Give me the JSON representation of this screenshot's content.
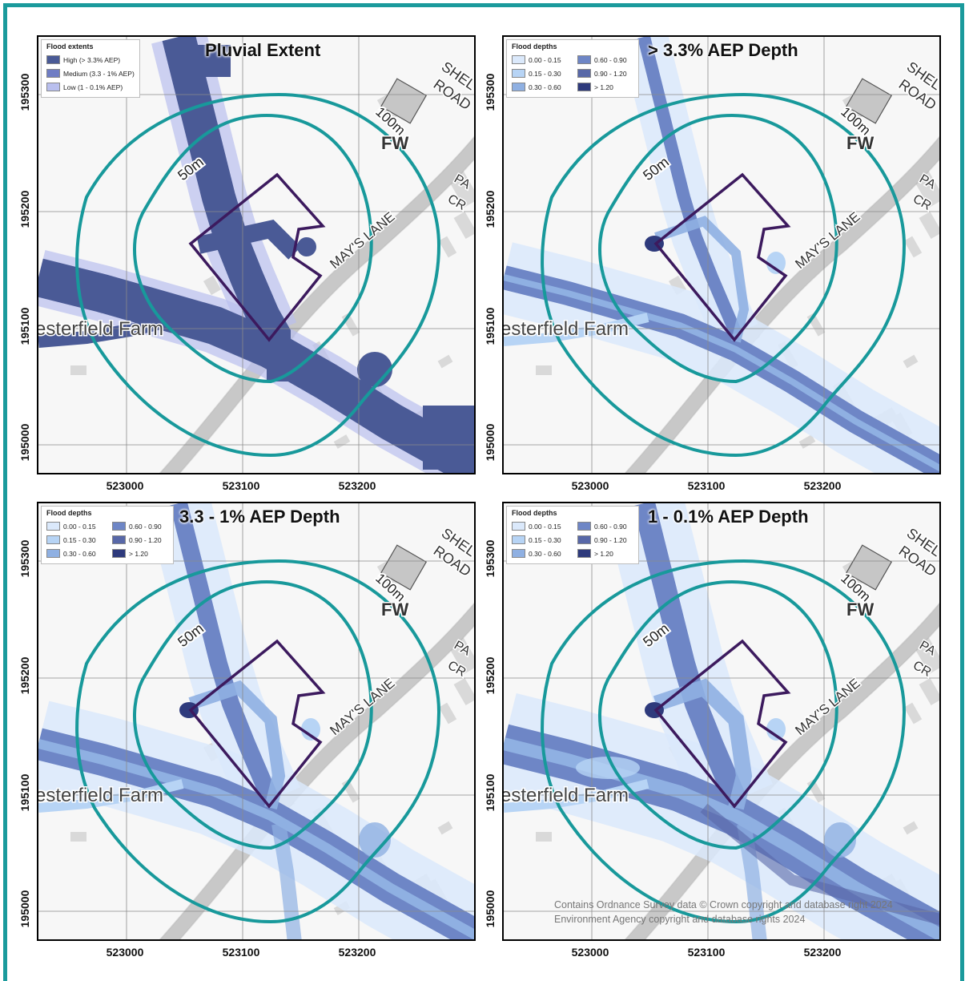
{
  "panels": [
    {
      "title": "Pluvial Extent",
      "legend_title": "Flood extents",
      "mode": "extent"
    },
    {
      "title": "> 3.3% AEP Depth",
      "legend_title": "Flood depths",
      "mode": "depth1"
    },
    {
      "title": "3.3 - 1% AEP Depth",
      "legend_title": "Flood depths",
      "mode": "depth2"
    },
    {
      "title": "1 - 0.1% AEP Depth",
      "legend_title": "Flood depths",
      "mode": "depth3"
    }
  ],
  "extent_legend": [
    {
      "label": "High (> 3.3% AEP)",
      "color": "#4a5a96"
    },
    {
      "label": "Medium (3.3 - 1% AEP)",
      "color": "#6f7dc4"
    },
    {
      "label": "Low (1 - 0.1% AEP)",
      "color": "#b9bfee"
    }
  ],
  "depth_legend": [
    {
      "label": "0.00 - 0.15",
      "color": "#dbe9fb"
    },
    {
      "label": "0.60 - 0.90",
      "color": "#6e86c6"
    },
    {
      "label": "0.15 - 0.30",
      "color": "#b7d4f5"
    },
    {
      "label": "0.90 - 1.20",
      "color": "#5868a8"
    },
    {
      "label": "0.30 - 0.60",
      "color": "#8fb0e2"
    },
    {
      "label": "> 1.20",
      "color": "#2e3a7c"
    }
  ],
  "x_ticks": [
    "523000",
    "523100",
    "523200"
  ],
  "y_ticks": [
    "195300",
    "195200",
    "195100",
    "195000"
  ],
  "buffer_labels": {
    "inner": "50m",
    "outer": "100m"
  },
  "map_labels": {
    "road1": "SHEL",
    "road2": "ROAD",
    "fw": "FW",
    "lane": "MAY'S LANE",
    "farm": "esterfield Farm",
    "pa": "PA",
    "cr": "CR"
  },
  "credit_lines": [
    "Contains Ordnance Survey data © Crown copyright and database right 2024",
    "Environment Agency copyright and database rights 2024"
  ],
  "colors": {
    "frame": "#1a9a9c",
    "buffer": "#18999b",
    "site": "#3c1a5e",
    "road": "#c8c8c8"
  }
}
